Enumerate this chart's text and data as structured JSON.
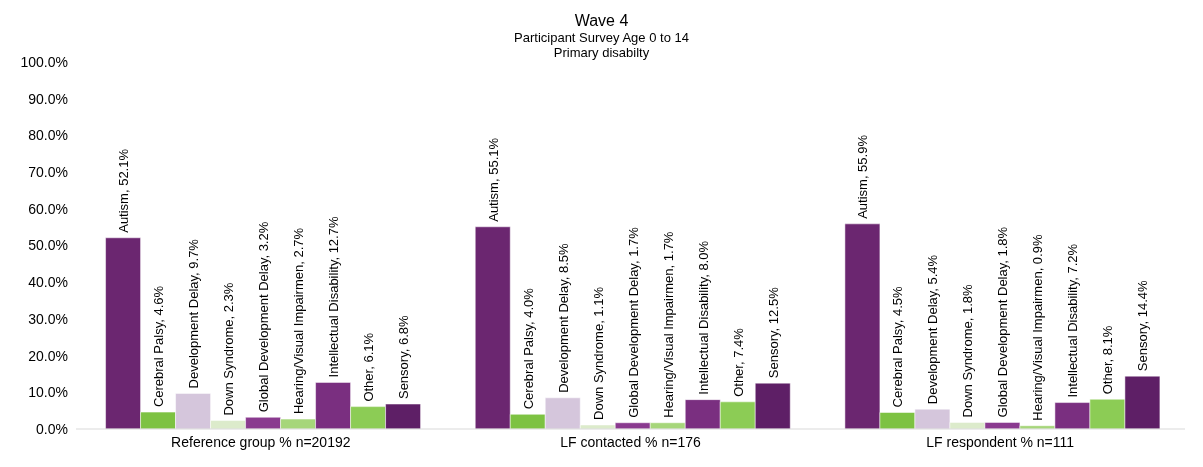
{
  "chart_data": {
    "type": "bar",
    "title": "Wave 4",
    "subtitle": "Participant Survey Age 0 to 14\nPrimary disabilty",
    "categories": [
      "Reference group % n=20192",
      "LF contacted % n=176",
      "LF respondent % n=111"
    ],
    "ylim": [
      0,
      100
    ],
    "yticks": [
      {
        "value": 0,
        "label": "0.0%"
      },
      {
        "value": 10,
        "label": "10.0%"
      },
      {
        "value": 20,
        "label": "20.0%"
      },
      {
        "value": 30,
        "label": "30.0%"
      },
      {
        "value": 40,
        "label": "40.0%"
      },
      {
        "value": 50,
        "label": "50.0%"
      },
      {
        "value": 60,
        "label": "60.0%"
      },
      {
        "value": 70,
        "label": "70.0%"
      },
      {
        "value": 80,
        "label": "80.0%"
      },
      {
        "value": 90,
        "label": "90.0%"
      },
      {
        "value": 100,
        "label": "100.0%"
      }
    ],
    "grid": false,
    "legend": false,
    "series": [
      {
        "color": "#6b2670",
        "values": [
          52.1,
          55.1,
          55.9
        ],
        "value_labels": [
          "Autism, 52.1%",
          "Autism, 55.1%",
          "Autism, 55.9%"
        ]
      },
      {
        "color": "#7dc242",
        "values": [
          4.6,
          4.0,
          4.5
        ],
        "value_labels": [
          "Cerebral Palsy, 4.6%",
          "Cerebral Palsy, 4.0%",
          "Cerebral Palsy, 4.5%"
        ]
      },
      {
        "color": "#d5c6dc",
        "values": [
          9.7,
          8.5,
          5.4
        ],
        "value_labels": [
          "Development Delay, 9.7%",
          "Development Delay, 8.5%",
          "Development Delay, 5.4%"
        ]
      },
      {
        "color": "#dcebcb",
        "values": [
          2.3,
          1.1,
          1.8
        ],
        "value_labels": [
          "Down Syndrome, 2.3%",
          "Down Syndrome, 1.1%",
          "Down Syndrome, 1.8%"
        ]
      },
      {
        "color": "#8a3a8f",
        "values": [
          3.2,
          1.7,
          1.8
        ],
        "value_labels": [
          "Global Development Delay, 3.2%",
          "Global Development Delay, 1.7%",
          "Global Development Delay, 1.8%"
        ]
      },
      {
        "color": "#a6d67a",
        "values": [
          2.7,
          1.7,
          0.9
        ],
        "value_labels": [
          "Hearing/Visual Impairmen, 2.7%",
          "Hearing/Visual Impairmen, 1.7%",
          "Hearing/Visual Impairmen, 0.9%"
        ]
      },
      {
        "color": "#7a2f80",
        "values": [
          12.7,
          8.0,
          7.2
        ],
        "value_labels": [
          "Intellectual Disability, 12.7%",
          "Intellectual Disability, 8.0%",
          "Intellectual Disability, 7.2%"
        ]
      },
      {
        "color": "#8ccc55",
        "values": [
          6.1,
          7.4,
          8.1
        ],
        "value_labels": [
          "Other, 6.1%",
          "Other, 7.4%",
          "Other, 8.1%"
        ]
      },
      {
        "color": "#5e1f66",
        "values": [
          6.8,
          12.5,
          14.4
        ],
        "value_labels": [
          "Sensory, 6.8%",
          "Sensory, 12.5%",
          "Sensory, 14.4%"
        ]
      }
    ]
  }
}
